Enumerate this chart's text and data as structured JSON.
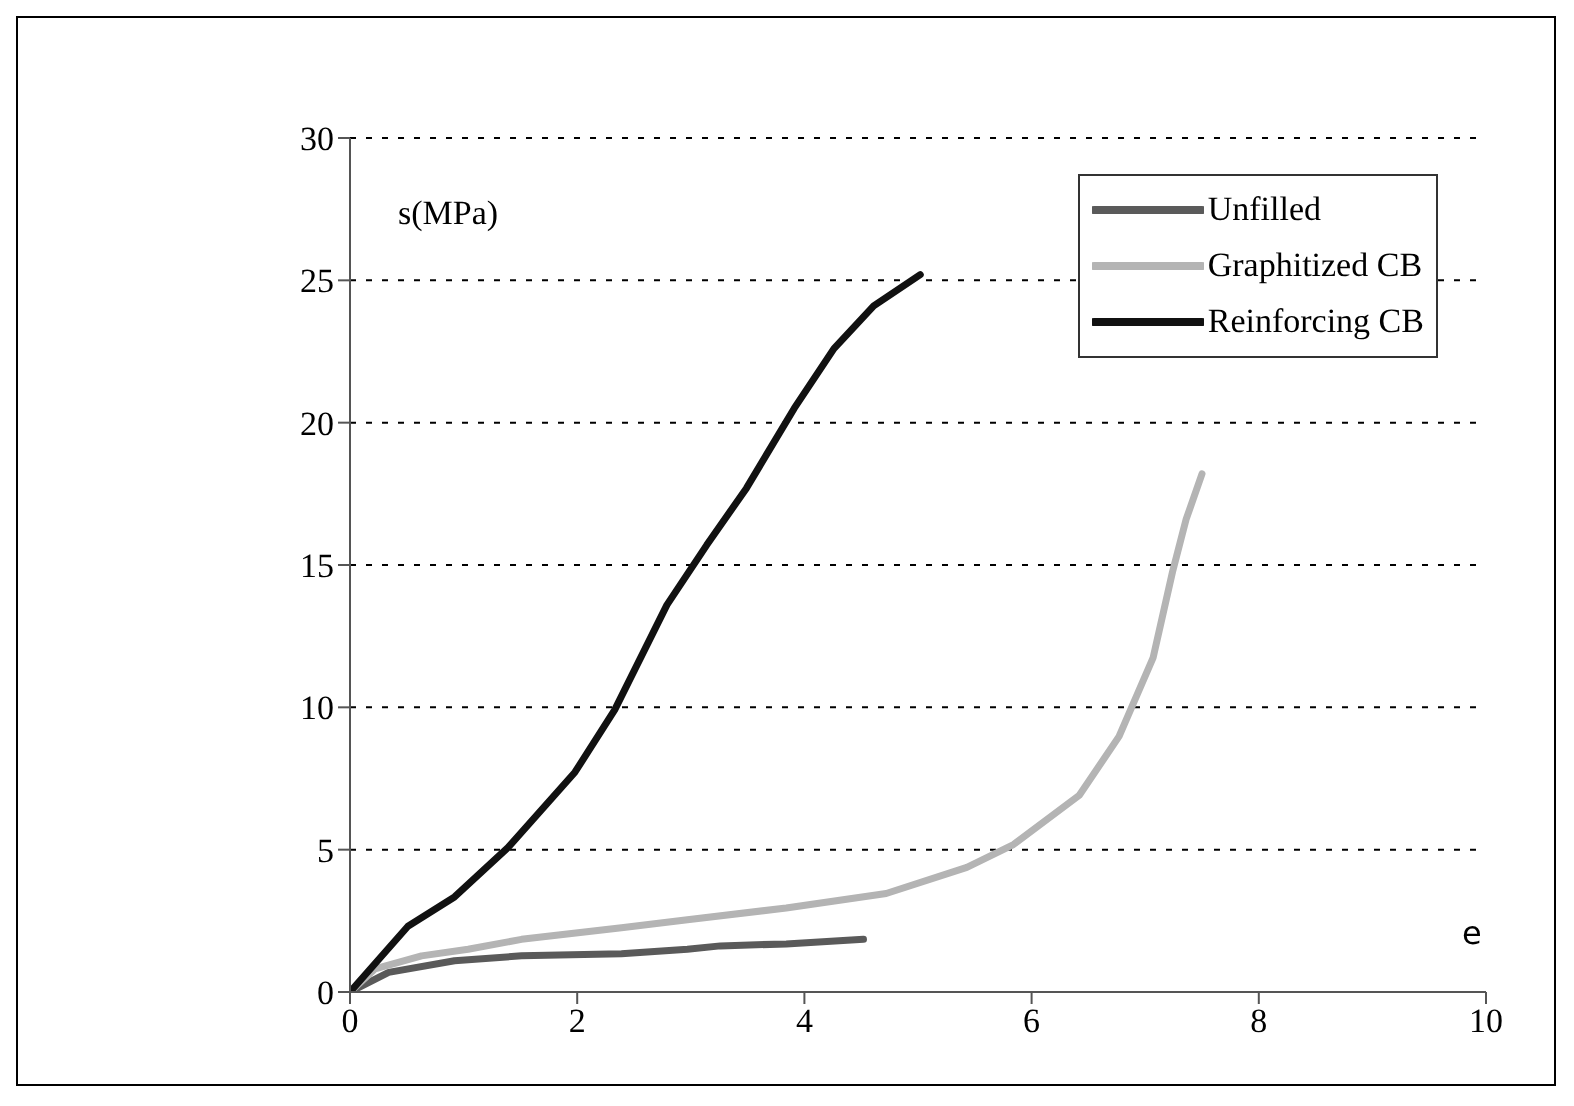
{
  "chart_data": {
    "type": "line",
    "xlabel": "e",
    "ylabel": "s(MPa)",
    "xlim": [
      0,
      10
    ],
    "xticks": [
      0,
      2,
      4,
      6,
      8,
      10
    ],
    "ylim": [
      0,
      30
    ],
    "yticks": [
      0,
      5,
      10,
      15,
      20,
      25,
      30
    ],
    "grid": "y",
    "legend": "top right",
    "line_style": "solid",
    "marker": "none",
    "series": [
      {
        "name": "Unfilled",
        "color": "#5a5a5a",
        "x": [
          0,
          0.34,
          0.92,
          1.51,
          2.39,
          2.97,
          3.26,
          3.84,
          4.52
        ],
        "values": [
          0,
          0.69,
          1.1,
          1.27,
          1.34,
          1.5,
          1.62,
          1.69,
          1.85
        ]
      },
      {
        "name": "Graphitized CB",
        "color": "#b4b4b4",
        "x": [
          0,
          0.22,
          0.63,
          1.04,
          1.51,
          2.39,
          2.97,
          3.84,
          4.72,
          5.43,
          5.84,
          6.42,
          6.77,
          7.07,
          7.24,
          7.36,
          7.5
        ],
        "values": [
          0,
          0.81,
          1.27,
          1.5,
          1.85,
          2.26,
          2.54,
          2.95,
          3.46,
          4.38,
          5.18,
          6.91,
          8.98,
          11.75,
          14.75,
          16.6,
          18.2
        ]
      },
      {
        "name": "Reinforcing CB",
        "color": "#111111",
        "x": [
          0,
          0.51,
          0.92,
          1.39,
          1.98,
          2.33,
          2.79,
          3.14,
          3.49,
          3.91,
          4.26,
          4.61,
          5.02
        ],
        "values": [
          0,
          2.31,
          3.34,
          5.07,
          7.72,
          9.91,
          13.6,
          15.7,
          17.7,
          20.5,
          22.6,
          24.1,
          25.2
        ]
      }
    ]
  }
}
